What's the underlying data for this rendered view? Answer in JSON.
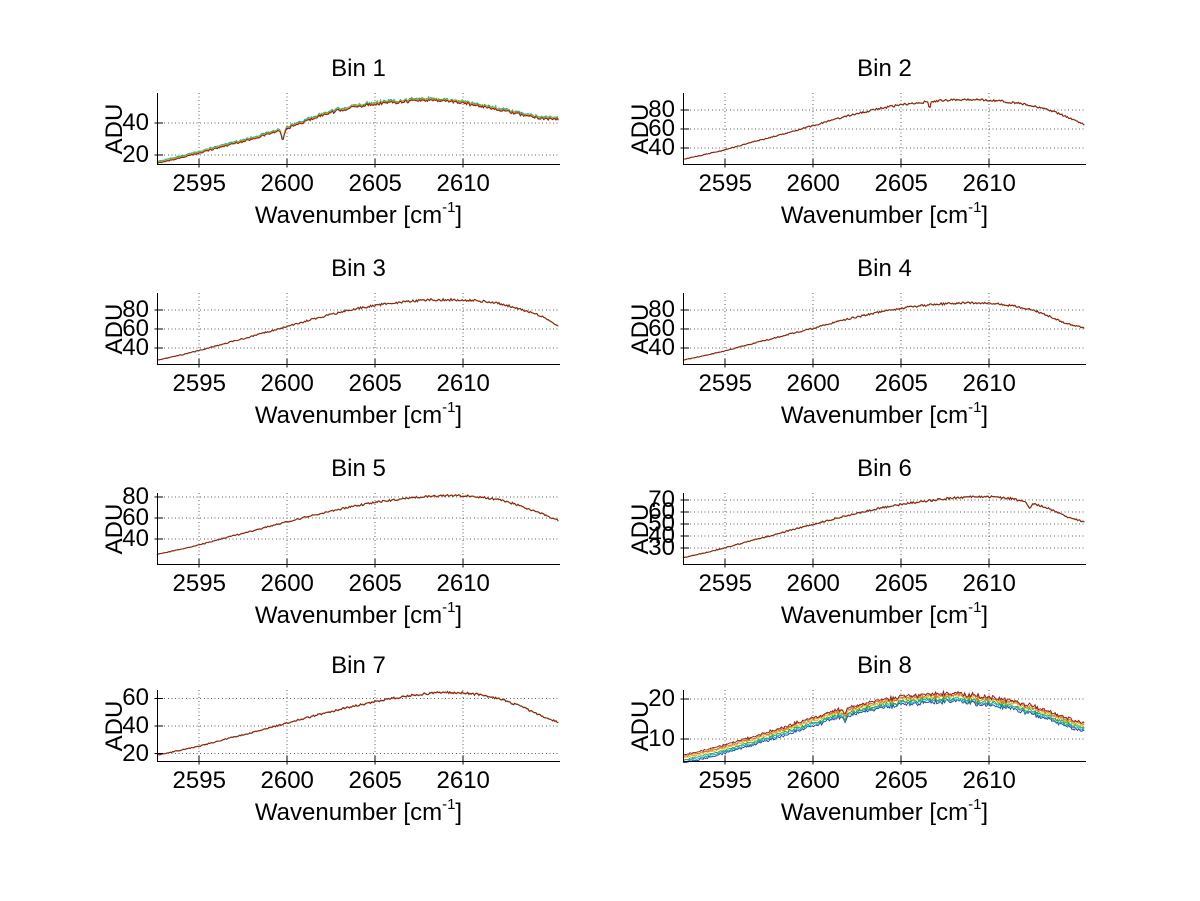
{
  "figure": {
    "background": "#ffffff",
    "labels": {
      "ylabel": "ADU",
      "xlabel_base": "Wavenumber [cm",
      "xlabel_exp": "-1",
      "xlabel_close": "]"
    },
    "grid_color": "#606060",
    "axis_color": "#000000"
  },
  "chart_data": [
    {
      "type": "line",
      "title": "Bin 1",
      "xlabel": "Wavenumber [cm^-1]",
      "ylabel": "ADU",
      "xlim": [
        2592.6,
        2615.5
      ],
      "ylim": [
        13.8,
        58.8
      ],
      "x_ticks": [
        2595,
        2600,
        2605,
        2610
      ],
      "y_ticks": [
        20,
        40
      ],
      "grid": true,
      "legend": false,
      "x": [
        2592.6,
        2593.6,
        2594.7,
        2595.7,
        2596.7,
        2597.8,
        2598.8,
        2599.9,
        2600.9,
        2601.9,
        2603.0,
        2604.0,
        2605.0,
        2606.1,
        2607.1,
        2608.1,
        2609.2,
        2610.2,
        2611.3,
        2612.3,
        2613.3,
        2614.4,
        2615.4
      ],
      "envelope_adu": [
        15,
        17.6,
        20.6,
        23.6,
        26.6,
        29.6,
        32.8,
        36.4,
        40.6,
        44.8,
        48.2,
        50.6,
        52.2,
        53.2,
        54.2,
        54.6,
        53.8,
        52.4,
        50.2,
        47.8,
        45.4,
        43.2,
        42.4
      ],
      "series": [
        {
          "name": "trace-blue",
          "color": "#2438b0",
          "offset": 0.15
        },
        {
          "name": "trace-cyan",
          "color": "#00b6c0",
          "offset": 1.0
        },
        {
          "name": "trace-green",
          "color": "#2f9e42",
          "offset": 0.6
        },
        {
          "name": "trace-yellow",
          "color": "#cdb60e",
          "offset": 0.45
        },
        {
          "name": "trace-orange",
          "color": "#dd6a1a",
          "offset": -0.1
        },
        {
          "name": "trace-darkred",
          "color": "#8c1a17",
          "offset": -0.25
        }
      ],
      "noise_amp": 0.9,
      "jitter": 0.35,
      "features": [
        {
          "x": 2599.75,
          "depth": 6,
          "width": 0.12
        }
      ]
    },
    {
      "type": "line",
      "title": "Bin 2",
      "xlabel": "Wavenumber [cm^-1]",
      "ylabel": "ADU",
      "xlim": [
        2592.6,
        2615.5
      ],
      "ylim": [
        22,
        98
      ],
      "x_ticks": [
        2595,
        2600,
        2605,
        2610
      ],
      "y_ticks": [
        40,
        60,
        80
      ],
      "grid": true,
      "legend": false,
      "x": [
        2592.6,
        2593.6,
        2594.7,
        2595.7,
        2596.7,
        2597.8,
        2598.8,
        2599.9,
        2600.9,
        2601.9,
        2603.0,
        2604.0,
        2605.0,
        2606.1,
        2607.1,
        2608.1,
        2609.2,
        2610.2,
        2611.3,
        2612.3,
        2613.3,
        2614.4,
        2615.4
      ],
      "envelope_adu": [
        28,
        32,
        36.8,
        41.8,
        47,
        52.2,
        57.6,
        63,
        68.4,
        73.6,
        78.4,
        82.4,
        85.6,
        88,
        89.8,
        90.8,
        91,
        90.2,
        88.2,
        85,
        80.6,
        73,
        64.5
      ],
      "series": [
        {
          "name": "trace-blue",
          "color": "#2438b0",
          "offset": 0
        },
        {
          "name": "trace-cyan",
          "color": "#00b6c0",
          "offset": 0
        },
        {
          "name": "trace-green",
          "color": "#2f9e42",
          "offset": 0
        },
        {
          "name": "trace-yellow",
          "color": "#cdb60e",
          "offset": 0
        },
        {
          "name": "trace-orange",
          "color": "#dd6a1a",
          "offset": 0
        },
        {
          "name": "trace-darkred",
          "color": "#8c1a17",
          "offset": 0
        }
      ],
      "noise_amp": 1.1,
      "jitter": 0.3,
      "features": [
        {
          "x": 2606.6,
          "depth": 7,
          "width": 0.07
        }
      ]
    },
    {
      "type": "line",
      "title": "Bin 3",
      "xlabel": "Wavenumber [cm^-1]",
      "ylabel": "ADU",
      "xlim": [
        2592.6,
        2615.5
      ],
      "ylim": [
        22,
        98
      ],
      "x_ticks": [
        2595,
        2600,
        2605,
        2610
      ],
      "y_ticks": [
        40,
        60,
        80
      ],
      "grid": true,
      "legend": false,
      "x": [
        2592.6,
        2593.6,
        2594.7,
        2595.7,
        2596.7,
        2597.8,
        2598.8,
        2599.9,
        2600.9,
        2601.9,
        2603.0,
        2604.0,
        2605.0,
        2606.1,
        2607.1,
        2608.1,
        2609.2,
        2610.2,
        2611.3,
        2612.3,
        2613.3,
        2614.4,
        2615.4
      ],
      "envelope_adu": [
        27,
        31,
        35.8,
        40.8,
        46,
        51.2,
        56.6,
        62,
        67.4,
        72.6,
        77.4,
        81.6,
        85,
        87.6,
        89.4,
        90.6,
        91,
        90.6,
        89,
        86,
        81,
        74,
        63.5
      ],
      "series": [
        {
          "name": "trace-blue",
          "color": "#2438b0",
          "offset": 0
        },
        {
          "name": "trace-cyan",
          "color": "#00b6c0",
          "offset": 0
        },
        {
          "name": "trace-green",
          "color": "#2f9e42",
          "offset": 0
        },
        {
          "name": "trace-yellow",
          "color": "#cdb60e",
          "offset": 0
        },
        {
          "name": "trace-orange",
          "color": "#dd6a1a",
          "offset": 0
        },
        {
          "name": "trace-darkred",
          "color": "#8c1a17",
          "offset": 0
        }
      ],
      "noise_amp": 1.2,
      "jitter": 0.3,
      "features": []
    },
    {
      "type": "line",
      "title": "Bin 4",
      "xlabel": "Wavenumber [cm^-1]",
      "ylabel": "ADU",
      "xlim": [
        2592.6,
        2615.5
      ],
      "ylim": [
        22,
        98
      ],
      "x_ticks": [
        2595,
        2600,
        2605,
        2610
      ],
      "y_ticks": [
        40,
        60,
        80
      ],
      "grid": true,
      "legend": false,
      "x": [
        2592.6,
        2593.6,
        2594.7,
        2595.7,
        2596.7,
        2597.8,
        2598.8,
        2599.9,
        2600.9,
        2601.9,
        2603.0,
        2604.0,
        2605.0,
        2606.1,
        2607.1,
        2608.1,
        2609.2,
        2610.2,
        2611.3,
        2612.3,
        2613.3,
        2614.4,
        2615.4
      ],
      "envelope_adu": [
        27,
        31,
        35.6,
        40.4,
        45.4,
        50.4,
        55.4,
        60.4,
        65.4,
        70.2,
        74.8,
        78.8,
        82,
        84.6,
        86.4,
        87.4,
        87.6,
        86.8,
        84.8,
        81,
        74.5,
        65.5,
        61
      ],
      "series": [
        {
          "name": "trace-blue",
          "color": "#2438b0",
          "offset": 0
        },
        {
          "name": "trace-cyan",
          "color": "#00b6c0",
          "offset": 0
        },
        {
          "name": "trace-green",
          "color": "#2f9e42",
          "offset": 0
        },
        {
          "name": "trace-yellow",
          "color": "#cdb60e",
          "offset": 0
        },
        {
          "name": "trace-orange",
          "color": "#dd6a1a",
          "offset": 0
        },
        {
          "name": "trace-darkred",
          "color": "#8c1a17",
          "offset": 0
        }
      ],
      "noise_amp": 1.1,
      "jitter": 0.3,
      "features": []
    },
    {
      "type": "line",
      "title": "Bin 5",
      "xlabel": "Wavenumber [cm^-1]",
      "ylabel": "ADU",
      "xlim": [
        2592.6,
        2615.5
      ],
      "ylim": [
        15,
        84
      ],
      "x_ticks": [
        2595,
        2600,
        2605,
        2610
      ],
      "y_ticks": [
        40,
        60,
        80
      ],
      "grid": true,
      "legend": false,
      "x": [
        2592.6,
        2593.6,
        2594.7,
        2595.7,
        2596.7,
        2597.8,
        2598.8,
        2599.9,
        2600.9,
        2601.9,
        2603.0,
        2604.0,
        2605.0,
        2606.1,
        2607.1,
        2608.1,
        2609.2,
        2610.2,
        2611.3,
        2612.3,
        2613.3,
        2614.4,
        2615.4
      ],
      "envelope_adu": [
        25,
        28.8,
        33,
        37.4,
        42,
        46.6,
        51.2,
        55.8,
        60.2,
        64.4,
        68.4,
        72,
        75,
        77.6,
        79.6,
        81,
        81.6,
        81.2,
        79.6,
        76.6,
        71.5,
        64.5,
        57.5
      ],
      "series": [
        {
          "name": "trace-blue",
          "color": "#2438b0",
          "offset": 0
        },
        {
          "name": "trace-cyan",
          "color": "#00b6c0",
          "offset": 0
        },
        {
          "name": "trace-green",
          "color": "#2f9e42",
          "offset": 0
        },
        {
          "name": "trace-yellow",
          "color": "#cdb60e",
          "offset": 0
        },
        {
          "name": "trace-orange",
          "color": "#dd6a1a",
          "offset": 0
        },
        {
          "name": "trace-darkred",
          "color": "#8c1a17",
          "offset": 0
        }
      ],
      "noise_amp": 1.0,
      "jitter": 0.3,
      "features": []
    },
    {
      "type": "line",
      "title": "Bin 6",
      "xlabel": "Wavenumber [cm^-1]",
      "ylabel": "ADU",
      "xlim": [
        2592.6,
        2615.5
      ],
      "ylim": [
        16,
        76
      ],
      "x_ticks": [
        2595,
        2600,
        2605,
        2610
      ],
      "y_ticks": [
        30,
        40,
        50,
        60,
        70
      ],
      "grid": true,
      "legend": false,
      "x": [
        2592.6,
        2593.6,
        2594.7,
        2595.7,
        2596.7,
        2597.8,
        2598.8,
        2599.9,
        2600.9,
        2601.9,
        2603.0,
        2604.0,
        2605.0,
        2606.1,
        2607.1,
        2608.1,
        2609.2,
        2610.2,
        2611.3,
        2612.3,
        2613.3,
        2614.4,
        2615.4
      ],
      "envelope_adu": [
        22,
        25.4,
        29.2,
        33.2,
        37.2,
        41.2,
        45.4,
        49.4,
        53.4,
        57.2,
        60.8,
        64,
        66.6,
        68.8,
        70.6,
        72,
        72.8,
        72.6,
        71.2,
        68.4,
        63.5,
        56,
        52
      ],
      "series": [
        {
          "name": "trace-blue",
          "color": "#2438b0",
          "offset": 0
        },
        {
          "name": "trace-cyan",
          "color": "#00b6c0",
          "offset": 0
        },
        {
          "name": "trace-green",
          "color": "#2f9e42",
          "offset": 0
        },
        {
          "name": "trace-yellow",
          "color": "#cdb60e",
          "offset": 0
        },
        {
          "name": "trace-orange",
          "color": "#dd6a1a",
          "offset": 0
        },
        {
          "name": "trace-darkred",
          "color": "#8c1a17",
          "offset": 0
        }
      ],
      "noise_amp": 0.9,
      "jitter": 0.3,
      "features": [
        {
          "x": 2612.3,
          "depth": 4.5,
          "width": 0.15
        }
      ]
    },
    {
      "type": "line",
      "title": "Bin 7",
      "xlabel": "Wavenumber [cm^-1]",
      "ylabel": "ADU",
      "xlim": [
        2592.6,
        2615.5
      ],
      "ylim": [
        14,
        66
      ],
      "x_ticks": [
        2595,
        2600,
        2605,
        2610
      ],
      "y_ticks": [
        20,
        40,
        60
      ],
      "grid": true,
      "legend": false,
      "x": [
        2592.6,
        2593.6,
        2594.7,
        2595.7,
        2596.7,
        2597.8,
        2598.8,
        2599.9,
        2600.9,
        2601.9,
        2603.0,
        2604.0,
        2605.0,
        2606.1,
        2607.1,
        2608.1,
        2609.2,
        2610.2,
        2611.3,
        2612.3,
        2613.3,
        2614.4,
        2615.4
      ],
      "envelope_adu": [
        19,
        21.6,
        24.6,
        27.8,
        31.2,
        34.6,
        38.2,
        41.8,
        45.2,
        48.6,
        52,
        55,
        57.8,
        60.2,
        62.2,
        63.6,
        64.2,
        63.8,
        62,
        58.8,
        54,
        47.5,
        42.8
      ],
      "series": [
        {
          "name": "trace-blue",
          "color": "#2438b0",
          "offset": 0
        },
        {
          "name": "trace-cyan",
          "color": "#00b6c0",
          "offset": 0
        },
        {
          "name": "trace-green",
          "color": "#2f9e42",
          "offset": 0
        },
        {
          "name": "trace-yellow",
          "color": "#cdb60e",
          "offset": 0
        },
        {
          "name": "trace-orange",
          "color": "#dd6a1a",
          "offset": 0
        },
        {
          "name": "trace-darkred",
          "color": "#8c1a17",
          "offset": 0
        }
      ],
      "noise_amp": 0.8,
      "jitter": 0.3,
      "features": []
    },
    {
      "type": "line",
      "title": "Bin 8",
      "xlabel": "Wavenumber [cm^-1]",
      "ylabel": "ADU",
      "xlim": [
        2592.6,
        2615.5
      ],
      "ylim": [
        4.2,
        22.2
      ],
      "x_ticks": [
        2595,
        2600,
        2605,
        2610
      ],
      "y_ticks": [
        10,
        20
      ],
      "grid": true,
      "legend": false,
      "x": [
        2592.6,
        2593.6,
        2594.7,
        2595.7,
        2596.7,
        2597.8,
        2598.8,
        2599.9,
        2600.9,
        2601.9,
        2603.0,
        2604.0,
        2605.0,
        2606.1,
        2607.1,
        2608.1,
        2609.2,
        2610.2,
        2611.3,
        2612.3,
        2613.3,
        2614.4,
        2615.4
      ],
      "envelope_adu": [
        5,
        6,
        7.2,
        8.5,
        9.8,
        11.2,
        12.7,
        14.2,
        15.6,
        16.9,
        18,
        18.9,
        19.6,
        20.1,
        20.4,
        20.3,
        19.9,
        19.3,
        18.5,
        17.4,
        16.1,
        14.2,
        13
      ],
      "series": [
        {
          "name": "trace-blue",
          "color": "#2438b0",
          "offset": -1.1
        },
        {
          "name": "trace-cyan",
          "color": "#00b6c0",
          "offset": -0.7
        },
        {
          "name": "trace-green",
          "color": "#2f9e42",
          "offset": -0.35
        },
        {
          "name": "trace-yellow",
          "color": "#cdb60e",
          "offset": 0.2
        },
        {
          "name": "trace-orange",
          "color": "#dd6a1a",
          "offset": 0.55
        },
        {
          "name": "trace-darkred",
          "color": "#8c1a17",
          "offset": 0.95
        }
      ],
      "noise_amp": 0.45,
      "jitter": 0.28,
      "features": [
        {
          "x": 2601.8,
          "depth": 1.3,
          "width": 0.1
        }
      ]
    }
  ]
}
